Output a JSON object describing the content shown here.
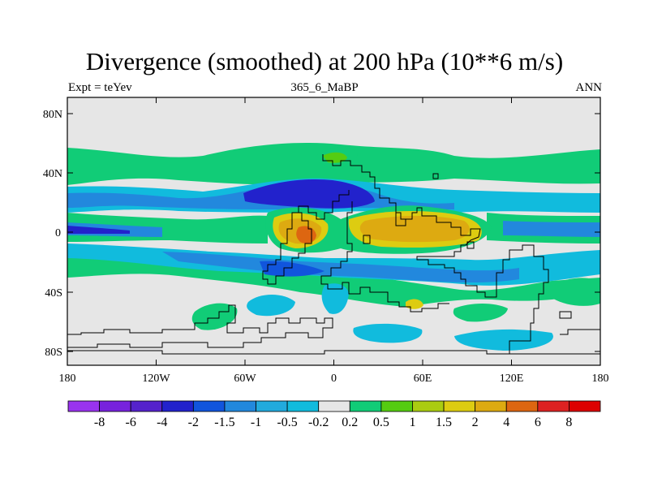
{
  "title": "Divergence (smoothed) at 200 hPa (10**6 m/s)",
  "left_string": "Expt = teYev",
  "center_string": "365_6_MaBP",
  "right_string": "ANN",
  "map": {
    "lat_ticks": [
      "80N",
      "40N",
      "0",
      "40S",
      "80S"
    ],
    "lon_ticks": [
      "180",
      "120W",
      "60W",
      "0",
      "60E",
      "120E",
      "180"
    ]
  },
  "colorbar": {
    "labels": [
      "-8",
      "-6",
      "-4",
      "-2",
      "-1.5",
      "-1",
      "-0.5",
      "-0.2",
      "0.2",
      "0.5",
      "1",
      "1.5",
      "2",
      "4",
      "6",
      "8"
    ],
    "colors": [
      "#9933ee",
      "#7722dd",
      "#5522cc",
      "#2222cc",
      "#1155dd",
      "#2288dd",
      "#22aadd",
      "#11bbdd",
      "#e6e6e6",
      "#11cc77",
      "#55cc11",
      "#aacc11",
      "#ddcc11",
      "#ddaa11",
      "#dd6611",
      "#dd2222",
      "#dd0000"
    ]
  },
  "palette": {
    "neutral": "#e6e6e6",
    "green": "#11cc77",
    "lime": "#55cc11",
    "yellow": "#ddcc11",
    "orange": "#ddaa11",
    "red": "#dd6611",
    "cyan": "#11bbdd",
    "sky": "#22aadd",
    "blue": "#2288dd",
    "darkblue": "#1155dd",
    "navy": "#2222cc"
  }
}
